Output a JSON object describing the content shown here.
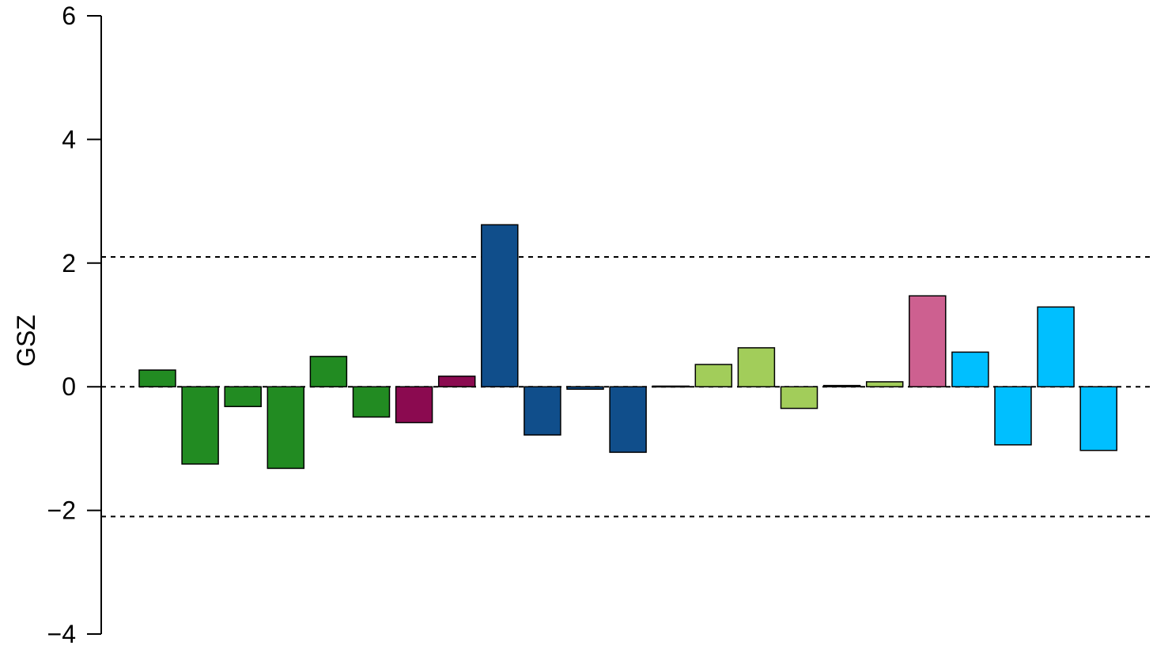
{
  "chart_data": {
    "type": "bar",
    "ylabel": "GSZ",
    "ylim": [
      -4,
      6
    ],
    "yticks": [
      6,
      4,
      2,
      0,
      -2,
      -4
    ],
    "ytick_labels": [
      "6",
      "4",
      "2",
      "0",
      "−2",
      "−4"
    ],
    "reference_lines": [
      2.1,
      0,
      -2.1
    ],
    "grid": false,
    "legend": "none",
    "bars": [
      {
        "value": 0.27,
        "color": "#228B22"
      },
      {
        "value": -1.25,
        "color": "#228B22"
      },
      {
        "value": -0.32,
        "color": "#228B22"
      },
      {
        "value": -1.32,
        "color": "#228B22"
      },
      {
        "value": 0.49,
        "color": "#228B22"
      },
      {
        "value": -0.49,
        "color": "#228B22"
      },
      {
        "value": -0.58,
        "color": "#8B0A50"
      },
      {
        "value": 0.17,
        "color": "#8B0A50"
      },
      {
        "value": 2.62,
        "color": "#104E8B"
      },
      {
        "value": -0.78,
        "color": "#104E8B"
      },
      {
        "value": -0.04,
        "color": "#104E8B"
      },
      {
        "value": -1.06,
        "color": "#104E8B"
      },
      {
        "value": 0.01,
        "color": "#104E8B"
      },
      {
        "value": 0.36,
        "color": "#A2CD5A"
      },
      {
        "value": 0.63,
        "color": "#A2CD5A"
      },
      {
        "value": -0.35,
        "color": "#A2CD5A"
      },
      {
        "value": 0.02,
        "color": "#A2CD5A"
      },
      {
        "value": 0.08,
        "color": "#A2CD5A"
      },
      {
        "value": 1.47,
        "color": "#CD6090"
      },
      {
        "value": 0.56,
        "color": "#00BFFF"
      },
      {
        "value": -0.94,
        "color": "#00BFFF"
      },
      {
        "value": 1.29,
        "color": "#00BFFF"
      },
      {
        "value": -1.03,
        "color": "#00BFFF"
      }
    ]
  }
}
